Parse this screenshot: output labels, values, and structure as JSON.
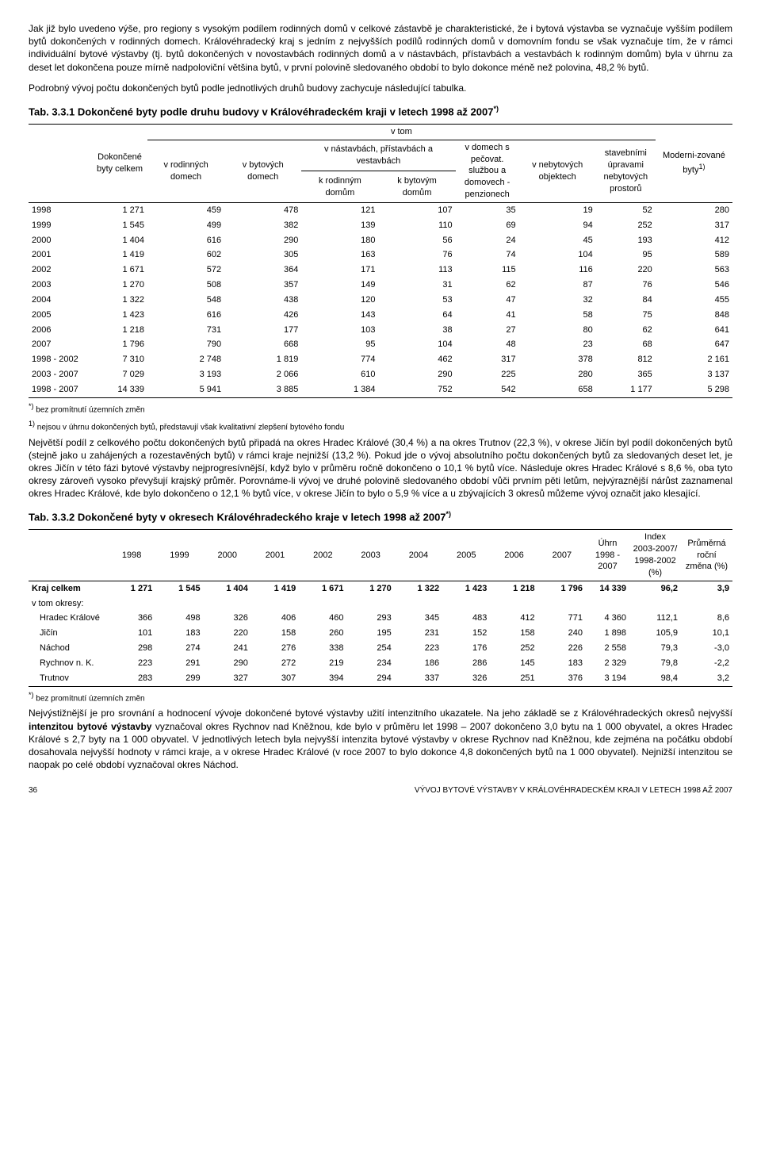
{
  "para1": "Jak již bylo uvedeno výše, pro regiony s vysokým podílem rodinných domů v celkové zástavbě je charakteristické, že i bytová výstavba se vyznačuje vyšším podílem bytů dokončených v rodinných domech. Královéhradecký kraj s jedním z nejvyšších podílů rodinných domů v domovním fondu se však vyznačuje tím, že v rámci individuální bytové výstavby (tj. bytů dokončených v novostavbách rodinných domů a v nástavbách, přístavbách a vestavbách k rodinným domům) byla v úhrnu za deset let dokončena pouze mírně nadpoloviční většina bytů, v první polovině sledovaného období to bylo dokonce méně než polovina, 48,2 % bytů.",
  "para2": "Podrobný vývoj počtu dokončených bytů podle jednotlivých druhů budovy zachycuje následující tabulka.",
  "tab1": {
    "title": "Tab. 3.3.1 Dokončené byty podle druhu budovy v Královéhradeckém kraji v letech 1998 až 2007",
    "sup": "*)",
    "header": {
      "c0": "",
      "c1": "Dokončené byty celkem",
      "vtom": "v tom",
      "c2": "v rodinných domech",
      "c3": "v bytových domech",
      "c4_top": "v nástavbách, přístavbách a vestavbách",
      "c4a": "k rodinným domům",
      "c4b": "k bytovým domům",
      "c5": "v domech s pečovat. službou a domovech - penzionech",
      "c6": "v nebytových objektech",
      "c7": "stavebními úpravami nebytových prostorů",
      "c8": "Moderni-zované byty",
      "c8sup": "1)"
    },
    "rows": [
      {
        "y": "1998",
        "v": [
          "1 271",
          "459",
          "478",
          "121",
          "107",
          "35",
          "19",
          "52",
          "280"
        ]
      },
      {
        "y": "1999",
        "v": [
          "1 545",
          "499",
          "382",
          "139",
          "110",
          "69",
          "94",
          "252",
          "317"
        ]
      },
      {
        "y": "2000",
        "v": [
          "1 404",
          "616",
          "290",
          "180",
          "56",
          "24",
          "45",
          "193",
          "412"
        ]
      },
      {
        "y": "2001",
        "v": [
          "1 419",
          "602",
          "305",
          "163",
          "76",
          "74",
          "104",
          "95",
          "589"
        ]
      },
      {
        "y": "2002",
        "v": [
          "1 671",
          "572",
          "364",
          "171",
          "113",
          "115",
          "116",
          "220",
          "563"
        ]
      },
      {
        "y": "2003",
        "v": [
          "1 270",
          "508",
          "357",
          "149",
          "31",
          "62",
          "87",
          "76",
          "546"
        ]
      },
      {
        "y": "2004",
        "v": [
          "1 322",
          "548",
          "438",
          "120",
          "53",
          "47",
          "32",
          "84",
          "455"
        ]
      },
      {
        "y": "2005",
        "v": [
          "1 423",
          "616",
          "426",
          "143",
          "64",
          "41",
          "58",
          "75",
          "848"
        ]
      },
      {
        "y": "2006",
        "v": [
          "1 218",
          "731",
          "177",
          "103",
          "38",
          "27",
          "80",
          "62",
          "641"
        ]
      },
      {
        "y": "2007",
        "v": [
          "1 796",
          "790",
          "668",
          "95",
          "104",
          "48",
          "23",
          "68",
          "647"
        ]
      },
      {
        "y": "1998 - 2002",
        "v": [
          "7 310",
          "2 748",
          "1 819",
          "774",
          "462",
          "317",
          "378",
          "812",
          "2 161"
        ]
      },
      {
        "y": "2003 - 2007",
        "v": [
          "7 029",
          "3 193",
          "2 066",
          "610",
          "290",
          "225",
          "280",
          "365",
          "3 137"
        ]
      },
      {
        "y": "1998 - 2007",
        "v": [
          "14 339",
          "5 941",
          "3 885",
          "1 384",
          "752",
          "542",
          "658",
          "1 177",
          "5 298"
        ]
      }
    ],
    "foot1": "*) bez promítnutí územních změn",
    "foot2": "1) nejsou v úhrnu dokončených bytů, představují však kvalitativní zlepšení bytového fondu"
  },
  "para3": "Největší podíl z celkového počtu dokončených bytů připadá na okres Hradec Králové (30,4 %) a na okres Trutnov (22,3 %), v okrese Jičín byl podíl dokončených bytů (stejně jako u zahájených a rozestavěných bytů) v rámci kraje nejnižší (13,2 %). Pokud jde o vývoj absolutního počtu dokončených bytů za sledovaných deset let, je okres Jičín v této fázi bytové výstavby nejprogresívnější, když bylo v průměru ročně dokončeno o 10,1 % bytů více. Následuje okres Hradec Králové s 8,6 %, oba tyto okresy zároveň vysoko převyšují krajský průměr. Porovnáme-li vývoj ve druhé polovině sledovaného období vůči prvním pěti letům, nejvýraznější nárůst zaznamenal okres Hradec Králové, kde bylo dokončeno o 12,1 % bytů více, v okrese Jičín to bylo o 5,9 % více a u zbývajících 3 okresů můžeme vývoj označit jako klesající.",
  "tab2": {
    "title": "Tab. 3.3.2 Dokončené byty v okresech Královéhradeckého kraje v letech 1998 až 2007",
    "sup": "*)",
    "header": {
      "years": [
        "1998",
        "1999",
        "2000",
        "2001",
        "2002",
        "2003",
        "2004",
        "2005",
        "2006",
        "2007"
      ],
      "uhrn": "Úhrn 1998 - 2007",
      "index": "Index 2003-2007/ 1998-2002 (%)",
      "prum": "Průměrná roční změna (%)"
    },
    "rows": [
      {
        "l": "Kraj celkem",
        "bold": true,
        "v": [
          "1 271",
          "1 545",
          "1 404",
          "1 419",
          "1 671",
          "1 270",
          "1 322",
          "1 423",
          "1 218",
          "1 796",
          "14 339",
          "96,2",
          "3,9"
        ]
      },
      {
        "l": "v tom okresy:",
        "bold": false,
        "v": [
          "",
          "",
          "",
          "",
          "",
          "",
          "",
          "",
          "",
          "",
          "",
          "",
          ""
        ]
      },
      {
        "l": "Hradec Králové",
        "bold": false,
        "indent": true,
        "v": [
          "366",
          "498",
          "326",
          "406",
          "460",
          "293",
          "345",
          "483",
          "412",
          "771",
          "4 360",
          "112,1",
          "8,6"
        ]
      },
      {
        "l": "Jičín",
        "bold": false,
        "indent": true,
        "v": [
          "101",
          "183",
          "220",
          "158",
          "260",
          "195",
          "231",
          "152",
          "158",
          "240",
          "1 898",
          "105,9",
          "10,1"
        ]
      },
      {
        "l": "Náchod",
        "bold": false,
        "indent": true,
        "v": [
          "298",
          "274",
          "241",
          "276",
          "338",
          "254",
          "223",
          "176",
          "252",
          "226",
          "2 558",
          "79,3",
          "-3,0"
        ]
      },
      {
        "l": "Rychnov n. K.",
        "bold": false,
        "indent": true,
        "v": [
          "223",
          "291",
          "290",
          "272",
          "219",
          "234",
          "186",
          "286",
          "145",
          "183",
          "2 329",
          "79,8",
          "-2,2"
        ]
      },
      {
        "l": "Trutnov",
        "bold": false,
        "indent": true,
        "v": [
          "283",
          "299",
          "327",
          "307",
          "394",
          "294",
          "337",
          "326",
          "251",
          "376",
          "3 194",
          "98,4",
          "3,2"
        ]
      }
    ],
    "foot": "*) bez promítnutí územních změn"
  },
  "para4a": "Nejvýstižnější je pro srovnání a hodnocení vývoje dokončené bytové výstavby užití intenzitního ukazatele. Na jeho základě se z Královéhradeckých okresů nejvyšší ",
  "para4b": "intenzitou bytové výstavby",
  "para4c": " vyznačoval okres Rychnov nad Kněžnou, kde bylo v průměru let 1998 – 2007 dokončeno 3,0 bytu na 1 000 obyvatel, a okres Hradec Králové s 2,7 byty na 1 000 obyvatel. V jednotlivých letech byla nejvyšší intenzita bytové výstavby v okrese Rychnov nad Kněžnou, kde zejména na počátku období dosahovala nejvyšší hodnoty v rámci kraje, a v okrese Hradec Králové (v roce 2007 to bylo dokonce 4,8 dokončených bytů na 1 000 obyvatel). Nejnižší intenzitou se naopak po celé období vyznačoval okres Náchod.",
  "footer": {
    "page": "36",
    "text": "VÝVOJ BYTOVÉ VÝSTAVBY V KRÁLOVÉHRADECKÉM KRAJI V LETECH 1998 AŽ 2007"
  }
}
